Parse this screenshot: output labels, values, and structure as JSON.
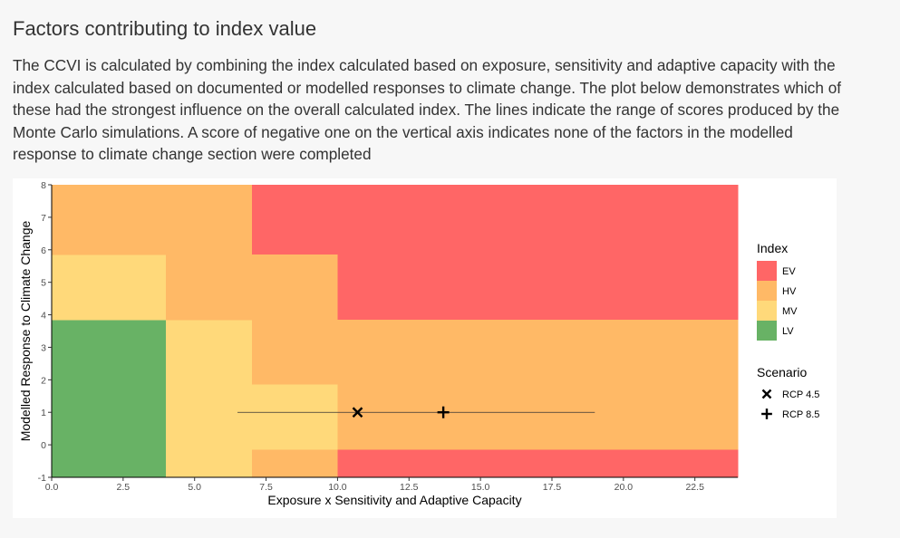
{
  "section": {
    "heading": "Factors contributing to index value",
    "description": "The CCVI is calculated by combining the index calculated based on exposure, sensitivity and adaptive capacity with the index calculated based on documented or modelled responses to climate change. The plot below demonstrates which of these had the strongest influence on the overall calculated index. The lines indicate the range of scores produced by the Monte Carlo simulations. A score of negative one on the vertical axis indicates none of the factors in the modelled response to climate change section were completed"
  },
  "chart_data": {
    "type": "heatmap",
    "title": "",
    "xlabel": "Exposure x Sensitivity and Adaptive Capacity",
    "ylabel": "Modelled Response to Climate Change",
    "xlim": [
      0,
      24
    ],
    "ylim": [
      -1,
      8
    ],
    "x_ticks": [
      0.0,
      2.5,
      5.0,
      7.5,
      10.0,
      12.5,
      15.0,
      17.5,
      20.0,
      22.5
    ],
    "x_tick_labels": [
      "0.0",
      "2.5",
      "5.0",
      "7.5",
      "10.0",
      "12.5",
      "15.0",
      "17.5",
      "20.0",
      "22.5"
    ],
    "y_ticks": [
      -1,
      0,
      1,
      2,
      3,
      4,
      5,
      6,
      7,
      8
    ],
    "y_tick_labels": [
      "-1",
      "0",
      "1",
      "2",
      "3",
      "4",
      "5",
      "6",
      "7",
      "8"
    ],
    "grid": false,
    "legend_position": "right",
    "index_legend": {
      "title": "Index",
      "items": [
        {
          "label": "EV",
          "color": "#ff6666"
        },
        {
          "label": "HV",
          "color": "#ffb966"
        },
        {
          "label": "MV",
          "color": "#ffd97a"
        },
        {
          "label": "LV",
          "color": "#68b265"
        }
      ]
    },
    "regions": [
      {
        "index": "LV",
        "x0": 0,
        "x1": 4,
        "y0": -1,
        "y1": 3.85
      },
      {
        "index": "MV",
        "x0": 0,
        "x1": 4,
        "y0": 3.85,
        "y1": 5.85
      },
      {
        "index": "HV",
        "x0": 0,
        "x1": 7,
        "y0": 5.85,
        "y1": 8
      },
      {
        "index": "MV",
        "x0": 4,
        "x1": 7,
        "y0": -1,
        "y1": 3.85
      },
      {
        "index": "HV",
        "x0": 4,
        "x1": 7,
        "y0": 3.85,
        "y1": 5.85
      },
      {
        "index": "EV",
        "x0": 7,
        "x1": 24,
        "y0": 5.85,
        "y1": 8
      },
      {
        "index": "HV",
        "x0": 7,
        "x1": 10,
        "y0": 3.85,
        "y1": 5.85
      },
      {
        "index": "EV",
        "x0": 10,
        "x1": 24,
        "y0": 3.85,
        "y1": 5.85
      },
      {
        "index": "HV",
        "x0": 7,
        "x1": 24,
        "y0": 1.85,
        "y1": 3.85
      },
      {
        "index": "MV",
        "x0": 7,
        "x1": 10,
        "y0": -0.15,
        "y1": 1.85
      },
      {
        "index": "HV",
        "x0": 10,
        "x1": 24,
        "y0": -0.15,
        "y1": 1.85
      },
      {
        "index": "HV",
        "x0": 7,
        "x1": 10,
        "y0": -1,
        "y1": -0.15
      },
      {
        "index": "EV",
        "x0": 10,
        "x1": 24,
        "y0": -1,
        "y1": -0.15
      }
    ],
    "scenario_legend": {
      "title": "Scenario",
      "items": [
        {
          "label": "RCP 4.5",
          "shape": "x"
        },
        {
          "label": "RCP 8.5",
          "shape": "plus"
        }
      ]
    },
    "series": [
      {
        "name": "RCP 4.5",
        "shape": "x",
        "x": 10.7,
        "y": 1
      },
      {
        "name": "RCP 8.5",
        "shape": "plus",
        "x": 13.7,
        "y": 1
      }
    ],
    "range_line": {
      "x0": 6.5,
      "x1": 19.0,
      "y": 1
    }
  }
}
